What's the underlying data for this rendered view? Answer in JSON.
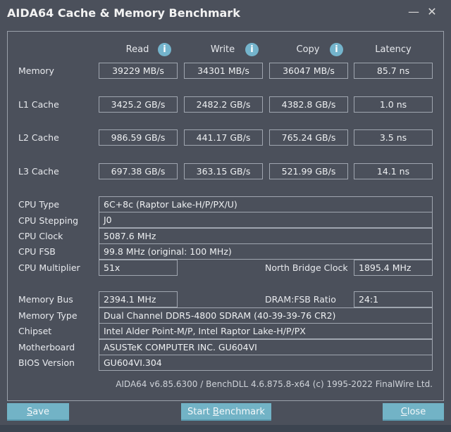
{
  "window": {
    "title": "AIDA64 Cache & Memory Benchmark",
    "minimize": "—",
    "close": "✕"
  },
  "columns": [
    "Read",
    "Write",
    "Copy",
    "Latency"
  ],
  "bench_rows": [
    {
      "label": "Memory",
      "values": [
        "39229 MB/s",
        "34301 MB/s",
        "36047 MB/s",
        "85.7 ns"
      ]
    },
    {
      "label": "L1 Cache",
      "values": [
        "3425.2 GB/s",
        "2482.2 GB/s",
        "4382.8 GB/s",
        "1.0 ns"
      ]
    },
    {
      "label": "L2 Cache",
      "values": [
        "986.59 GB/s",
        "441.17 GB/s",
        "765.24 GB/s",
        "3.5 ns"
      ]
    },
    {
      "label": "L3 Cache",
      "values": [
        "697.38 GB/s",
        "363.15 GB/s",
        "521.99 GB/s",
        "14.1 ns"
      ]
    }
  ],
  "cpu": {
    "type_label": "CPU Type",
    "type": "6C+8c   (Raptor Lake-H/P/PX/U)",
    "stepping_label": "CPU Stepping",
    "stepping": "J0",
    "clock_label": "CPU Clock",
    "clock": "5087.6 MHz",
    "fsb_label": "CPU FSB",
    "fsb": "99.8 MHz  (original: 100 MHz)",
    "mult_label": "CPU Multiplier",
    "mult": "51x",
    "nb_label": "North Bridge Clock",
    "nb": "1895.4 MHz"
  },
  "mem": {
    "bus_label": "Memory Bus",
    "bus": "2394.1 MHz",
    "ratio_label": "DRAM:FSB Ratio",
    "ratio": "24:1",
    "type_label": "Memory Type",
    "type": "Dual Channel DDR5-4800 SDRAM  (40-39-39-76 CR2)",
    "chipset_label": "Chipset",
    "chipset": "Intel Alder Point-M/P, Intel Raptor Lake-H/P/PX",
    "mobo_label": "Motherboard",
    "mobo": "ASUSTeK COMPUTER INC. GU604VI",
    "bios_label": "BIOS Version",
    "bios": "GU604VI.304"
  },
  "footer": "AIDA64 v6.85.6300 / BenchDLL 4.6.875.8-x64  (c) 1995-2022 FinalWire Ltd.",
  "buttons": {
    "save": "Save",
    "start": "Start Benchmark",
    "close": "Close"
  }
}
